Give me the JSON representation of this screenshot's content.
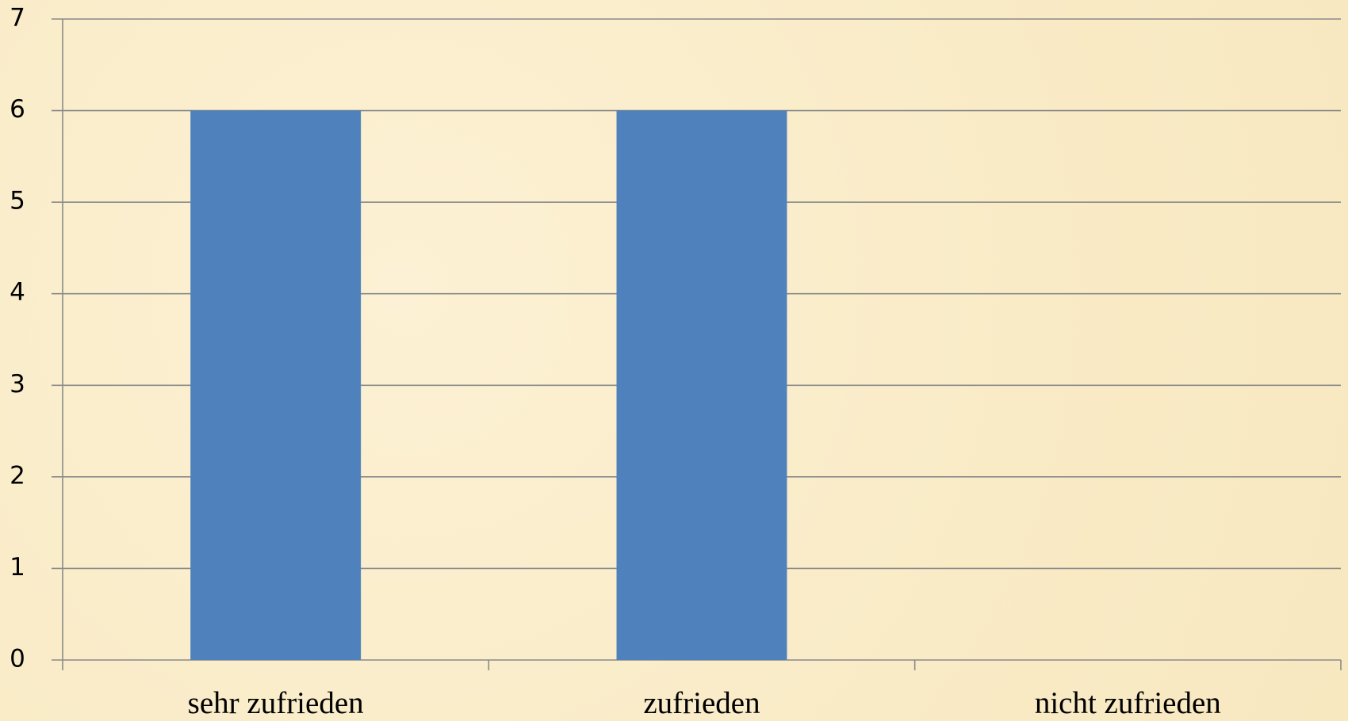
{
  "chart_data": {
    "type": "bar",
    "categories": [
      "sehr zufrieden",
      "zufrieden",
      "nicht zufrieden"
    ],
    "values": [
      6,
      6,
      0
    ],
    "color": "#4f81bd",
    "ylim": [
      0,
      7
    ],
    "yticks": [
      0,
      1,
      2,
      3,
      4,
      5,
      6,
      7
    ],
    "grid": true
  }
}
